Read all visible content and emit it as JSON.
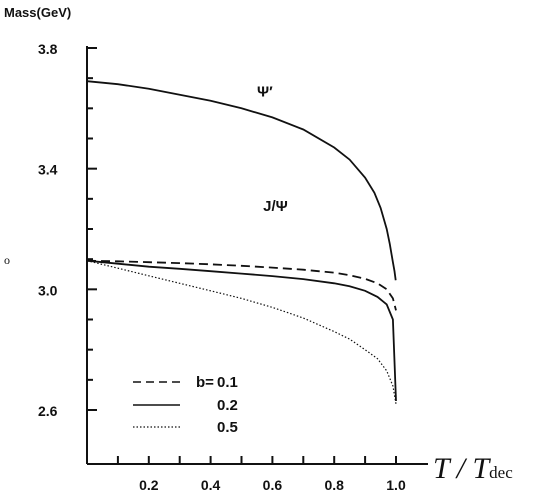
{
  "chart_data": {
    "type": "line",
    "ylabel": "Mass(GeV)",
    "xlabel_main": "T / T",
    "xlabel_sub": "dec",
    "xlim": [
      0,
      1.0
    ],
    "ylim": [
      2.6,
      3.8
    ],
    "x_ticks": [
      "0.2",
      "0.4",
      "0.6",
      "0.8",
      "1.0"
    ],
    "y_ticks": [
      "2.6",
      "3.0",
      "3.4",
      "3.8"
    ],
    "side_mark": "o",
    "curve_labels": [
      {
        "text": "Ψ′",
        "x": 0.55,
        "y": 3.64
      },
      {
        "text": "J/Ψ",
        "x": 0.57,
        "y": 3.26
      }
    ],
    "legend": {
      "title": "b=",
      "entries": [
        {
          "label": "0.1",
          "dash": "dashed"
        },
        {
          "label": "0.2",
          "dash": "solid"
        },
        {
          "label": "0.5",
          "dash": "dotted"
        }
      ]
    },
    "series": [
      {
        "label": "Ψ′",
        "dash": "solid",
        "x": [
          0,
          0.1,
          0.2,
          0.3,
          0.4,
          0.5,
          0.6,
          0.7,
          0.8,
          0.85,
          0.9,
          0.93,
          0.95,
          0.97,
          0.98,
          0.99,
          0.995,
          0.999
        ],
        "y": [
          3.69,
          3.68,
          3.665,
          3.645,
          3.625,
          3.6,
          3.57,
          3.53,
          3.47,
          3.43,
          3.37,
          3.32,
          3.27,
          3.2,
          3.15,
          3.09,
          3.06,
          3.03
        ]
      },
      {
        "label": "J/Ψ b=0.1",
        "dash": "dashed",
        "x": [
          0,
          0.1,
          0.2,
          0.3,
          0.4,
          0.5,
          0.6,
          0.7,
          0.8,
          0.85,
          0.9,
          0.94,
          0.97,
          0.99,
          1.0
        ],
        "y": [
          3.095,
          3.093,
          3.09,
          3.087,
          3.083,
          3.078,
          3.072,
          3.065,
          3.055,
          3.047,
          3.035,
          3.02,
          3.0,
          2.97,
          2.93
        ]
      },
      {
        "label": "J/Ψ b=0.2",
        "dash": "solid",
        "x": [
          0,
          0.1,
          0.2,
          0.3,
          0.4,
          0.5,
          0.6,
          0.7,
          0.8,
          0.85,
          0.9,
          0.94,
          0.97,
          0.99,
          1.0
        ],
        "y": [
          3.095,
          3.085,
          3.075,
          3.068,
          3.06,
          3.052,
          3.044,
          3.034,
          3.02,
          3.01,
          2.995,
          2.975,
          2.95,
          2.9,
          2.63
        ]
      },
      {
        "label": "J/Ψ b=0.5",
        "dash": "dotted",
        "x": [
          0,
          0.1,
          0.2,
          0.3,
          0.4,
          0.5,
          0.6,
          0.7,
          0.8,
          0.85,
          0.9,
          0.94,
          0.97,
          0.99,
          1.0
        ],
        "y": [
          3.095,
          3.07,
          3.045,
          3.02,
          2.995,
          2.97,
          2.94,
          2.905,
          2.86,
          2.835,
          2.8,
          2.77,
          2.73,
          2.68,
          2.62
        ]
      }
    ]
  }
}
